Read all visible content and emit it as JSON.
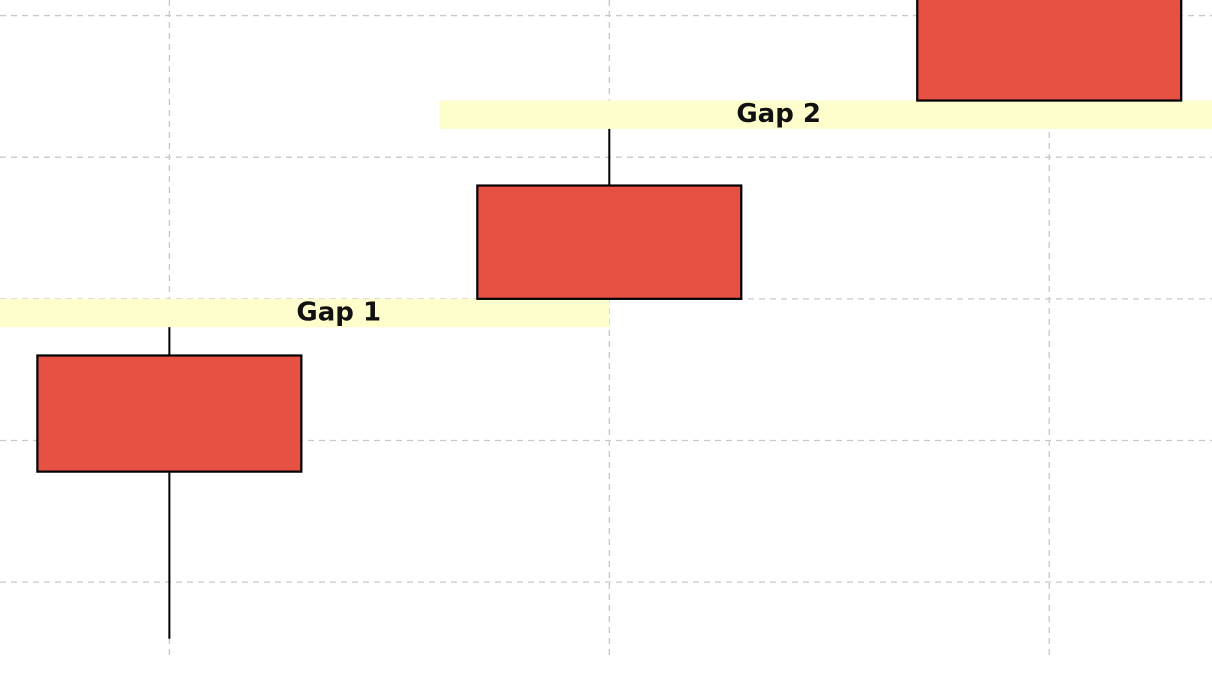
{
  "chart_data": {
    "type": "candlestick",
    "title": "",
    "xlabel": "",
    "ylabel": "",
    "xlim": [
      -0.385,
      2.37
    ],
    "ylim": [
      94.25,
      117.55
    ],
    "grid": true,
    "grid_x": [
      0,
      1,
      2
    ],
    "grid_y": [
      97,
      102,
      107,
      112,
      117
    ],
    "colors": {
      "candle_body": "#e55244",
      "candle_edge": "#000000",
      "gap_zone": "#fefecd",
      "grid": "#c8c8c8",
      "label": "#111111"
    },
    "candles": [
      {
        "x": 0,
        "open": 105,
        "close": 100.9,
        "high": 106.0,
        "low": 95.0
      },
      {
        "x": 1,
        "open": 111.0,
        "close": 107.0,
        "high": 113.0,
        "low": 107.0
      },
      {
        "x": 2,
        "open": 118.0,
        "close": 114.0,
        "high": 119.0,
        "low": 114.0
      }
    ],
    "gap_zones": [
      {
        "label": "Gap 1",
        "x_start": -0.385,
        "x_end": 1.0,
        "y_low": 106.0,
        "y_high": 107.0,
        "label_x": 0.385,
        "label_y": 106.5
      },
      {
        "label": "Gap 2",
        "x_start": 0.615,
        "x_end": 2.37,
        "y_low": 113.0,
        "y_high": 114.0,
        "label_x": 1.385,
        "label_y": 113.5
      },
      {
        "label": "",
        "x_start": 1.615,
        "x_end": 2.37,
        "y_low": 119.0,
        "y_high": 120.0
      }
    ],
    "candle_width": 0.6
  }
}
